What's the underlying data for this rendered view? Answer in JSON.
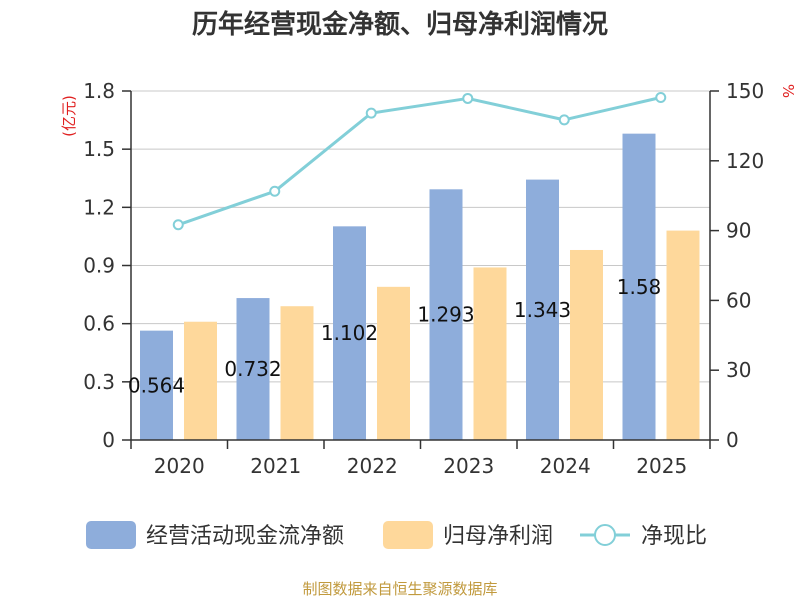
{
  "chart_data": {
    "type": "bar",
    "title": "历年经营现金净额、归母净利润情况",
    "categories": [
      "2020",
      "2021",
      "2022",
      "2023",
      "2024",
      "2025"
    ],
    "series": [
      {
        "name": "经营活动现金流净额",
        "type": "bar",
        "axis": "left",
        "values": [
          0.564,
          0.732,
          1.102,
          1.293,
          1.343,
          1.58
        ],
        "data_labels": [
          "0.564",
          "0.732",
          "1.102",
          "1.293",
          "1.343",
          "1.58"
        ]
      },
      {
        "name": "归母净利润",
        "type": "bar",
        "axis": "left",
        "values": [
          0.61,
          0.69,
          0.79,
          0.89,
          0.98,
          1.08
        ]
      },
      {
        "name": "净现比",
        "type": "line",
        "axis": "right",
        "values": [
          92.5,
          106.9,
          140.5,
          146.8,
          137.6,
          147.2
        ]
      }
    ],
    "y_left": {
      "label": "(亿元)",
      "range": [
        0,
        1.8
      ],
      "ticks": [
        "0",
        "0.3",
        "0.6",
        "0.9",
        "1.2",
        "1.5",
        "1.8"
      ]
    },
    "y_right": {
      "label": "%",
      "range": [
        0,
        150
      ],
      "ticks": [
        "0",
        "30",
        "60",
        "90",
        "120",
        "150"
      ]
    },
    "xlabel": "",
    "grid": true,
    "legend_position": "bottom"
  },
  "colors": {
    "cash_flow_bar": "#8eaddb",
    "net_profit_bar": "#fed89b",
    "ratio_line": "#82cfd8",
    "axis_unit": "#e02020",
    "axis": "#333333",
    "grid": "#c8c8c8",
    "footer": "#c19a3e"
  },
  "footer": {
    "source_text": "制图数据来自恒生聚源数据库"
  }
}
